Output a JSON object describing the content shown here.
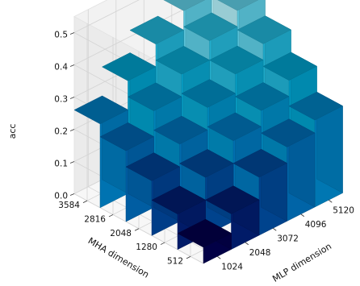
{
  "chart_data": {
    "type": "bar3d",
    "title": "",
    "xlabel": "MLP dimension",
    "ylabel": "MHA dimension",
    "zlabel": "acc",
    "x_categories": [
      "1024",
      "2048",
      "3072",
      "4096",
      "5120"
    ],
    "y_categories": [
      "512",
      "1280",
      "2048",
      "2816",
      "3584"
    ],
    "z_ticks": [
      "0.0",
      "0.1",
      "0.2",
      "0.3",
      "0.4",
      "0.5"
    ],
    "zlim": [
      0,
      0.55
    ],
    "grid": true,
    "colormap": "ocean_r",
    "values": [
      [
        0.05,
        0.11,
        0.17,
        0.22,
        0.26
      ],
      [
        0.11,
        0.18,
        0.24,
        0.3,
        0.35
      ],
      [
        0.18,
        0.25,
        0.31,
        0.37,
        0.42
      ],
      [
        0.23,
        0.3,
        0.37,
        0.43,
        0.48
      ],
      [
        0.27,
        0.35,
        0.42,
        0.48,
        0.54
      ]
    ]
  }
}
